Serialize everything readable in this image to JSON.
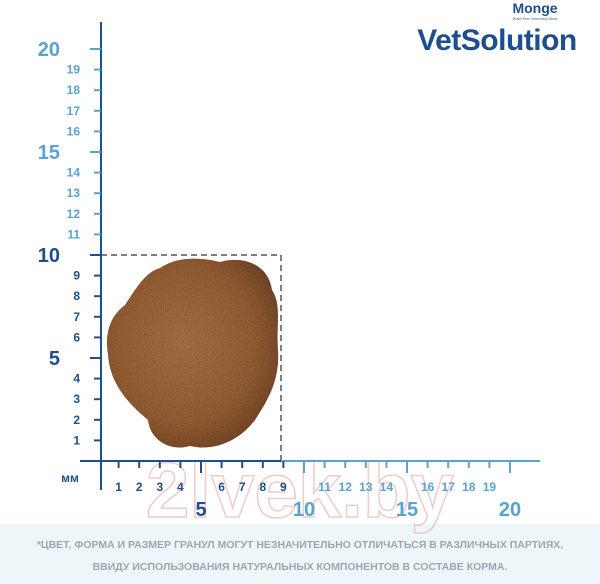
{
  "header": {
    "brand": "Monge",
    "brand_tagline": "Grain Free Veterinary Diets",
    "product_line": "VetSolution"
  },
  "ruler": {
    "unit": "мм",
    "y_labels": [
      1,
      2,
      3,
      4,
      5,
      6,
      7,
      8,
      9,
      10,
      11,
      12,
      13,
      14,
      15,
      16,
      17,
      18,
      19,
      20
    ],
    "x_labels": [
      1,
      2,
      3,
      4,
      5,
      6,
      7,
      8,
      9,
      10,
      11,
      12,
      13,
      14,
      15,
      16,
      17,
      18,
      19,
      20
    ]
  },
  "watermark": "2lvek.by",
  "disclaimer": [
    "*ЦВЕТ, ФОРМА И РАЗМЕР ГРАНУЛ МОГУТ НЕЗНАЧИТЕЛЬНО ОТЛИЧАТЬСЯ В РАЗЛИЧНЫХ ПАРТИЯХ,",
    "ВВИДУ ИСПОЛЬЗОВАНИЯ НАТУРАЛЬНЫХ КОМПОНЕНТОВ В СОСТАВЕ КОРМА."
  ]
}
